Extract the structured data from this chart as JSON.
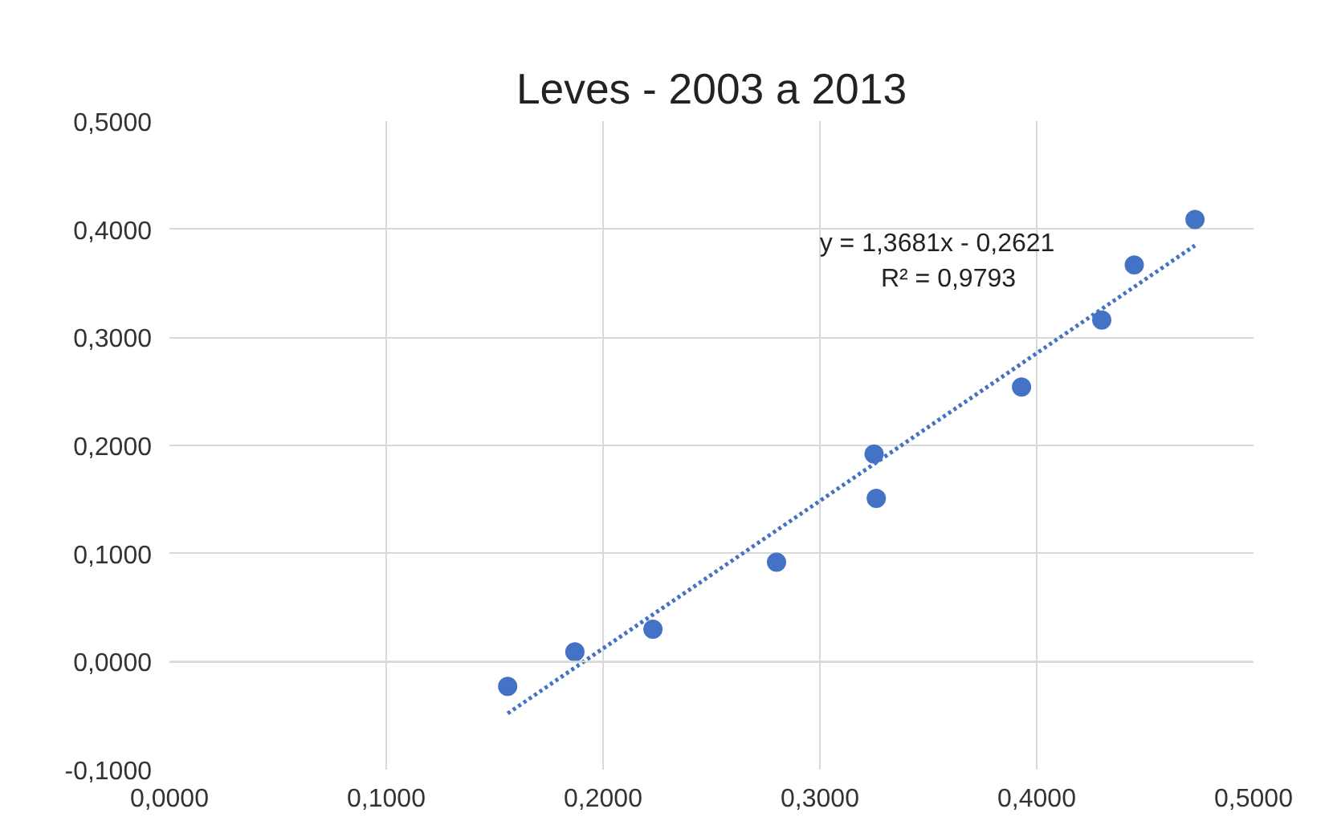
{
  "chart_data": {
    "type": "scatter",
    "title": "Leves - 2003 a 2013",
    "series": [
      {
        "color": "#4472c4",
        "marker": "circle",
        "x": [
          0.156,
          0.187,
          0.223,
          0.28,
          0.325,
          0.326,
          0.393,
          0.43,
          0.445,
          0.473
        ],
        "values": [
          -0.023,
          0.009,
          0.03,
          0.092,
          0.192,
          0.151,
          0.254,
          0.316,
          0.367,
          0.409
        ]
      },
      {
        "type": "line",
        "color": "#4472c4",
        "line_style": "dotted",
        "marker": "none",
        "x": [
          0.156,
          0.473
        ],
        "values": [
          -0.048,
          0.385
        ]
      }
    ],
    "annotations": [
      "y = 1,3681x - 0,2621",
      "R² = 0,9793"
    ],
    "xlim": [
      0,
      0.5
    ],
    "ylim": [
      -0.1,
      0.5
    ],
    "xticks": [
      {
        "value": 0,
        "label": "0,0000"
      },
      {
        "value": 0.1,
        "label": "0,1000"
      },
      {
        "value": 0.2,
        "label": "0,2000"
      },
      {
        "value": 0.3,
        "label": "0,3000"
      },
      {
        "value": 0.4,
        "label": "0,4000"
      },
      {
        "value": 0.5,
        "label": "0,5000"
      }
    ],
    "yticks": [
      {
        "value": -0.1,
        "label": "-0,1000"
      },
      {
        "value": 0,
        "label": "0,0000"
      },
      {
        "value": 0.1,
        "label": "0,1000"
      },
      {
        "value": 0.2,
        "label": "0,2000"
      },
      {
        "value": 0.3,
        "label": "0,3000"
      },
      {
        "value": 0.4,
        "label": "0,4000"
      },
      {
        "value": 0.5,
        "label": "0,5000"
      }
    ],
    "grid": true
  }
}
